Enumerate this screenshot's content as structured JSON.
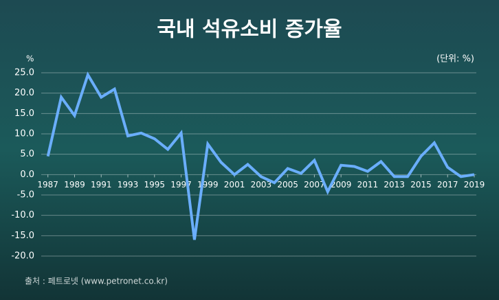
{
  "chart_data": {
    "type": "line",
    "title": "국내 석유소비 증가율",
    "y_unit": "%",
    "unit_note": "(단위: %)",
    "source": "출처 : 페트로넷 (www.petronet.co.kr)",
    "x": [
      1987,
      1988,
      1989,
      1990,
      1991,
      1992,
      1993,
      1994,
      1995,
      1996,
      1997,
      1998,
      1999,
      2000,
      2001,
      2002,
      2003,
      2004,
      2005,
      2006,
      2007,
      2008,
      2009,
      2010,
      2011,
      2012,
      2013,
      2014,
      2015,
      2016,
      2017,
      2018,
      2019
    ],
    "series": [
      {
        "name": "증가율",
        "color": "#6aaefc",
        "values": [
          4.5,
          19,
          14.5,
          24.5,
          19,
          21,
          9.5,
          10.2,
          8.8,
          6.2,
          10.2,
          -16,
          7.5,
          3,
          0,
          2.5,
          -0.5,
          -2,
          1.5,
          0.3,
          3.5,
          -4.2,
          2.3,
          2,
          0.8,
          3.2,
          -0.5,
          -0.5,
          4.5,
          7.8,
          1.8,
          -0.5,
          0
        ]
      }
    ],
    "xlim": [
      1986.5,
      2019
    ],
    "xticks": [
      1987,
      1989,
      1991,
      1993,
      1995,
      1997,
      1999,
      2001,
      2003,
      2005,
      2007,
      2009,
      2011,
      2013,
      2015,
      2017,
      2019
    ],
    "ylim": [
      -20,
      25
    ],
    "yticks": [
      {
        "value": 25,
        "label": "25.0"
      },
      {
        "value": 20,
        "label": "20.0"
      },
      {
        "value": 15,
        "label": "15.0"
      },
      {
        "value": 10,
        "label": "10.0"
      },
      {
        "value": 5,
        "label": "5.0"
      },
      {
        "value": 0,
        "label": "0.0"
      },
      {
        "value": -5,
        "label": "-5.0"
      },
      {
        "value": -10,
        "label": "-10.0"
      },
      {
        "value": -15,
        "label": "-15.0"
      },
      {
        "value": -20,
        "label": "-20.0"
      }
    ],
    "grid": true
  }
}
